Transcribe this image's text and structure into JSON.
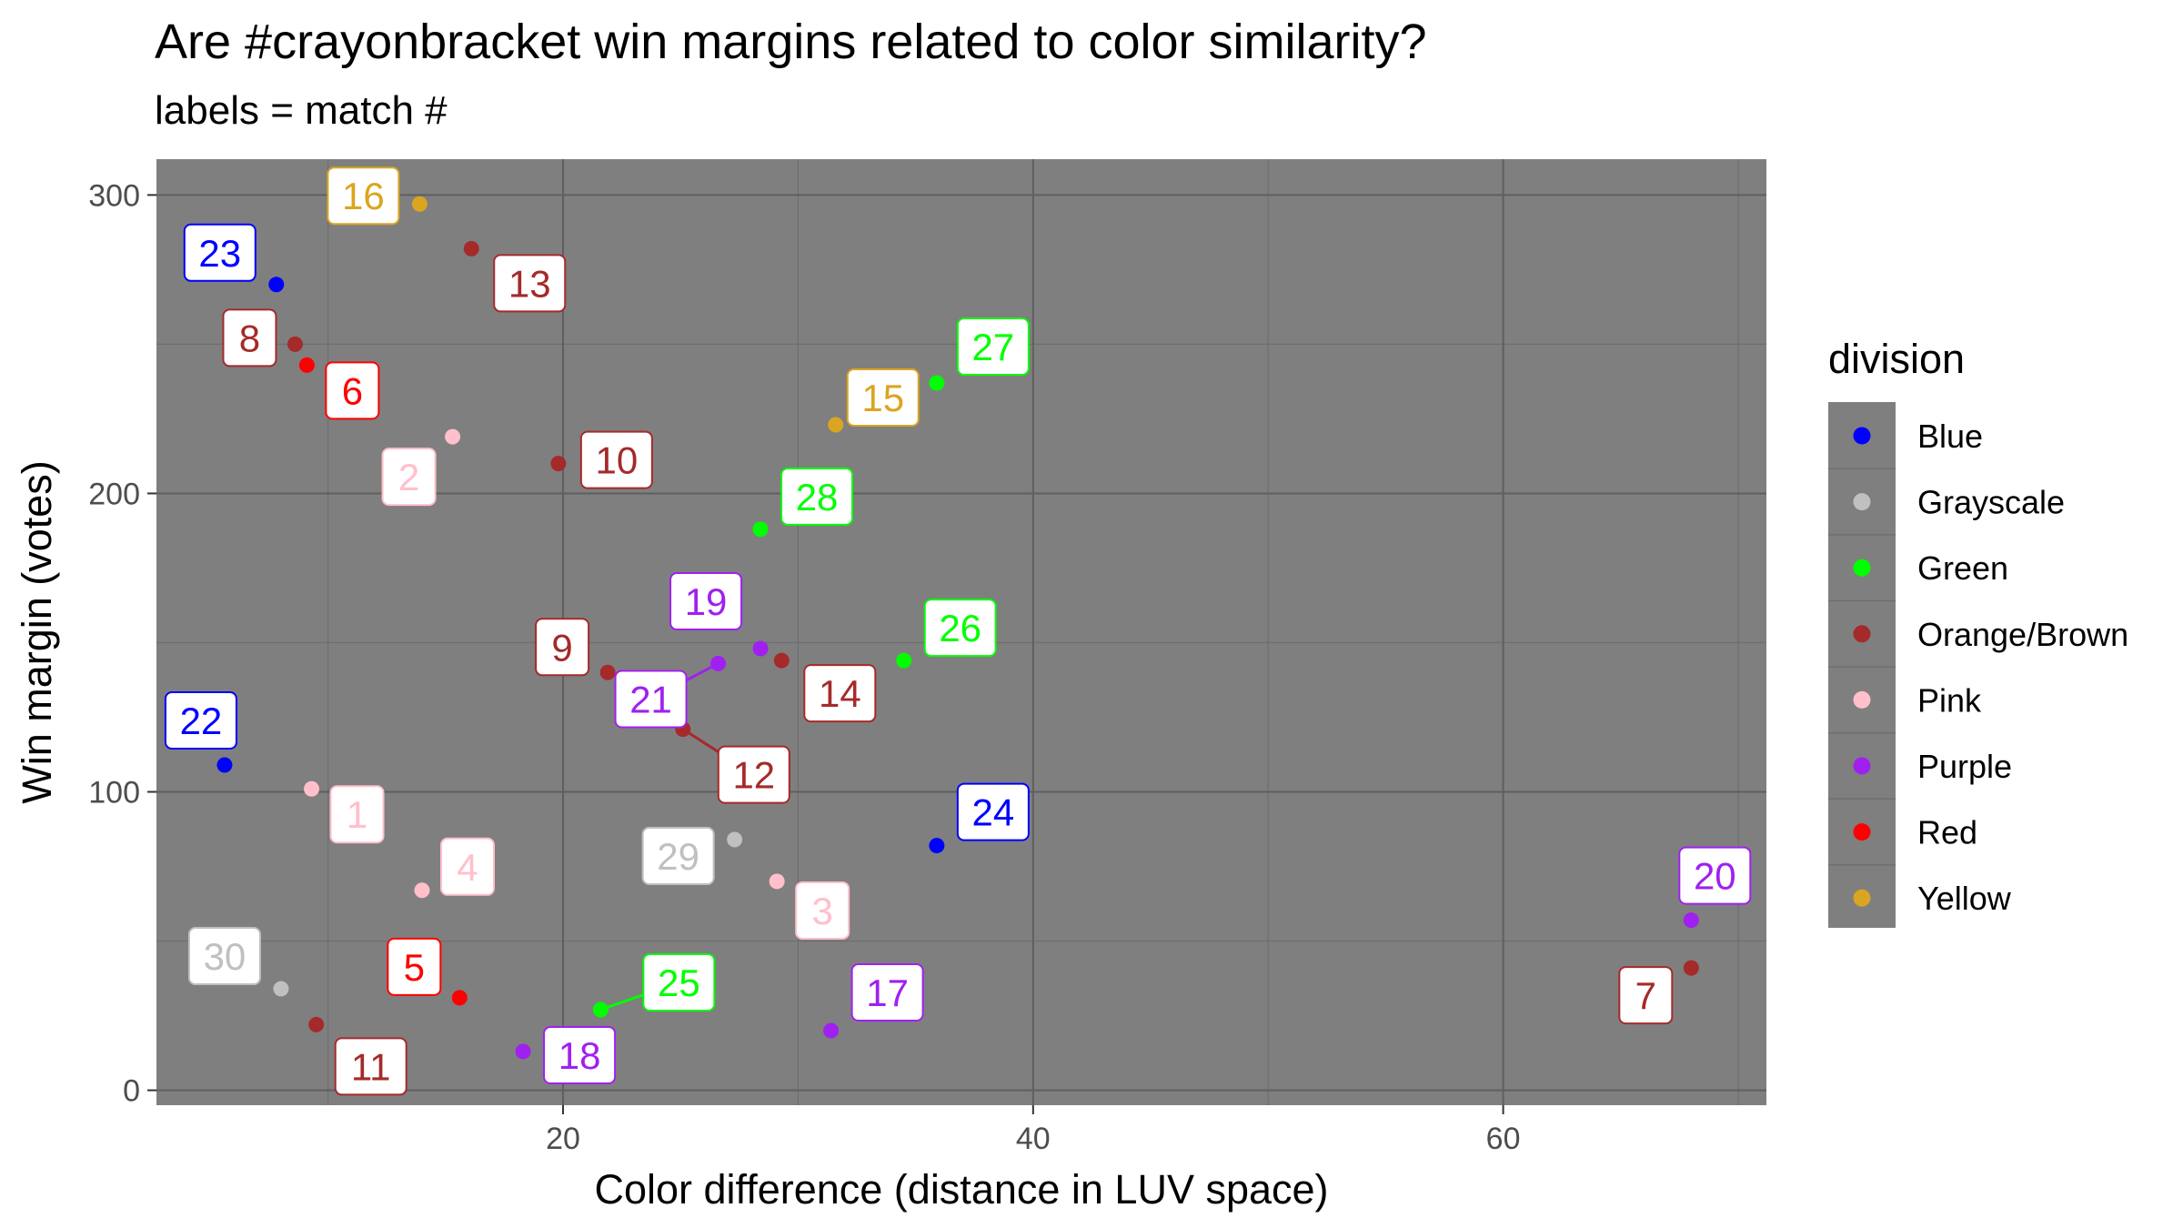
{
  "chart_data": {
    "type": "scatter",
    "title": "Are #crayonbracket win margins related to color similarity?",
    "subtitle": "labels = match #",
    "xlabel": "Color difference (distance in LUV space)",
    "ylabel": "Win margin (votes)",
    "xlim": [
      2.7,
      71.2
    ],
    "ylim": [
      -5,
      312
    ],
    "xticks": [
      20,
      40,
      60
    ],
    "yticks": [
      0,
      100,
      200,
      300
    ],
    "grid": true,
    "legend": {
      "title": "division",
      "placement": "right",
      "entries": [
        {
          "name": "Blue",
          "color": "#0000ff"
        },
        {
          "name": "Grayscale",
          "color": "#c0c0c0"
        },
        {
          "name": "Green",
          "color": "#00ff00"
        },
        {
          "name": "Orange/Brown",
          "color": "#a52a2a"
        },
        {
          "name": "Pink",
          "color": "#ffc0cb"
        },
        {
          "name": "Purple",
          "color": "#a020f0"
        },
        {
          "name": "Red",
          "color": "#ff0000"
        },
        {
          "name": "Yellow",
          "color": "#daa520"
        }
      ]
    },
    "points": [
      {
        "label": "1",
        "division": "Pink",
        "x": 9.3,
        "y": 101
      },
      {
        "label": "2",
        "division": "Pink",
        "x": 15.3,
        "y": 219
      },
      {
        "label": "3",
        "division": "Pink",
        "x": 29.1,
        "y": 70
      },
      {
        "label": "4",
        "division": "Pink",
        "x": 14.0,
        "y": 67
      },
      {
        "label": "5",
        "division": "Red",
        "x": 15.6,
        "y": 31
      },
      {
        "label": "6",
        "division": "Red",
        "x": 9.1,
        "y": 243
      },
      {
        "label": "7",
        "division": "Orange/Brown",
        "x": 68.0,
        "y": 41
      },
      {
        "label": "8",
        "division": "Orange/Brown",
        "x": 8.6,
        "y": 250
      },
      {
        "label": "9",
        "division": "Orange/Brown",
        "x": 21.9,
        "y": 140
      },
      {
        "label": "10",
        "division": "Orange/Brown",
        "x": 19.8,
        "y": 210
      },
      {
        "label": "11",
        "division": "Orange/Brown",
        "x": 9.5,
        "y": 22
      },
      {
        "label": "12",
        "division": "Orange/Brown",
        "x": 25.1,
        "y": 121
      },
      {
        "label": "13",
        "division": "Orange/Brown",
        "x": 16.1,
        "y": 282
      },
      {
        "label": "14",
        "division": "Orange/Brown",
        "x": 29.3,
        "y": 144
      },
      {
        "label": "15",
        "division": "Yellow",
        "x": 31.6,
        "y": 223
      },
      {
        "label": "16",
        "division": "Yellow",
        "x": 13.9,
        "y": 297
      },
      {
        "label": "17",
        "division": "Purple",
        "x": 31.4,
        "y": 20
      },
      {
        "label": "18",
        "division": "Purple",
        "x": 18.3,
        "y": 13
      },
      {
        "label": "19",
        "division": "Purple",
        "x": 28.4,
        "y": 148
      },
      {
        "label": "20",
        "division": "Purple",
        "x": 68.0,
        "y": 57
      },
      {
        "label": "21",
        "division": "Purple",
        "x": 26.6,
        "y": 143
      },
      {
        "label": "22",
        "division": "Blue",
        "x": 5.6,
        "y": 109
      },
      {
        "label": "23",
        "division": "Blue",
        "x": 7.8,
        "y": 270
      },
      {
        "label": "24",
        "division": "Blue",
        "x": 35.9,
        "y": 82
      },
      {
        "label": "25",
        "division": "Green",
        "x": 21.6,
        "y": 27
      },
      {
        "label": "26",
        "division": "Green",
        "x": 34.5,
        "y": 144
      },
      {
        "label": "27",
        "division": "Green",
        "x": 35.9,
        "y": 237
      },
      {
        "label": "28",
        "division": "Green",
        "x": 28.4,
        "y": 188
      },
      {
        "label": "29",
        "division": "Grayscale",
        "x": 27.3,
        "y": 84
      },
      {
        "label": "30",
        "division": "Grayscale",
        "x": 8.0,
        "y": 34
      }
    ]
  }
}
